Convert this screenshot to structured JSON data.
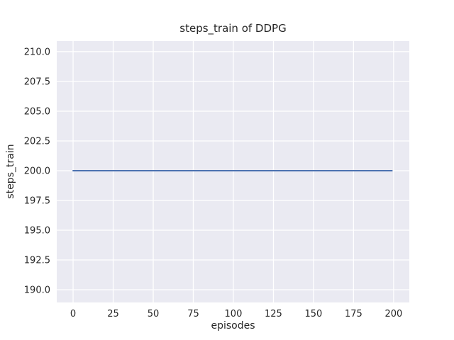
{
  "chart_data": {
    "type": "line",
    "title": "steps_train of DDPG",
    "xlabel": "episodes",
    "ylabel": "steps_train",
    "series": [
      {
        "name": "steps_train",
        "x": [
          0,
          199
        ],
        "y": [
          200,
          200
        ],
        "note": "constant value 200 across all episodes 0-199"
      }
    ],
    "xlim": [
      -10.2,
      209.8
    ],
    "ylim": [
      188.93,
      210.89
    ],
    "xticks": {
      "values": [
        0,
        25,
        50,
        75,
        100,
        125,
        150,
        175,
        200
      ],
      "labels": [
        "0",
        "25",
        "50",
        "75",
        "100",
        "125",
        "150",
        "175",
        "200"
      ]
    },
    "yticks": {
      "values": [
        190,
        192.5,
        195,
        197.5,
        200,
        202.5,
        205,
        207.5,
        210
      ],
      "labels": [
        "190.0",
        "192.5",
        "195.0",
        "197.5",
        "200.0",
        "202.5",
        "205.0",
        "207.5",
        "210.0"
      ]
    },
    "grid": true,
    "legend": "none",
    "style": "seaborn-darkgrid",
    "colors": {
      "line": "#4c72b0",
      "plot_background": "#eaeaf2",
      "grid": "#ffffff",
      "text": "#262626",
      "figure_background": "#ffffff"
    }
  }
}
